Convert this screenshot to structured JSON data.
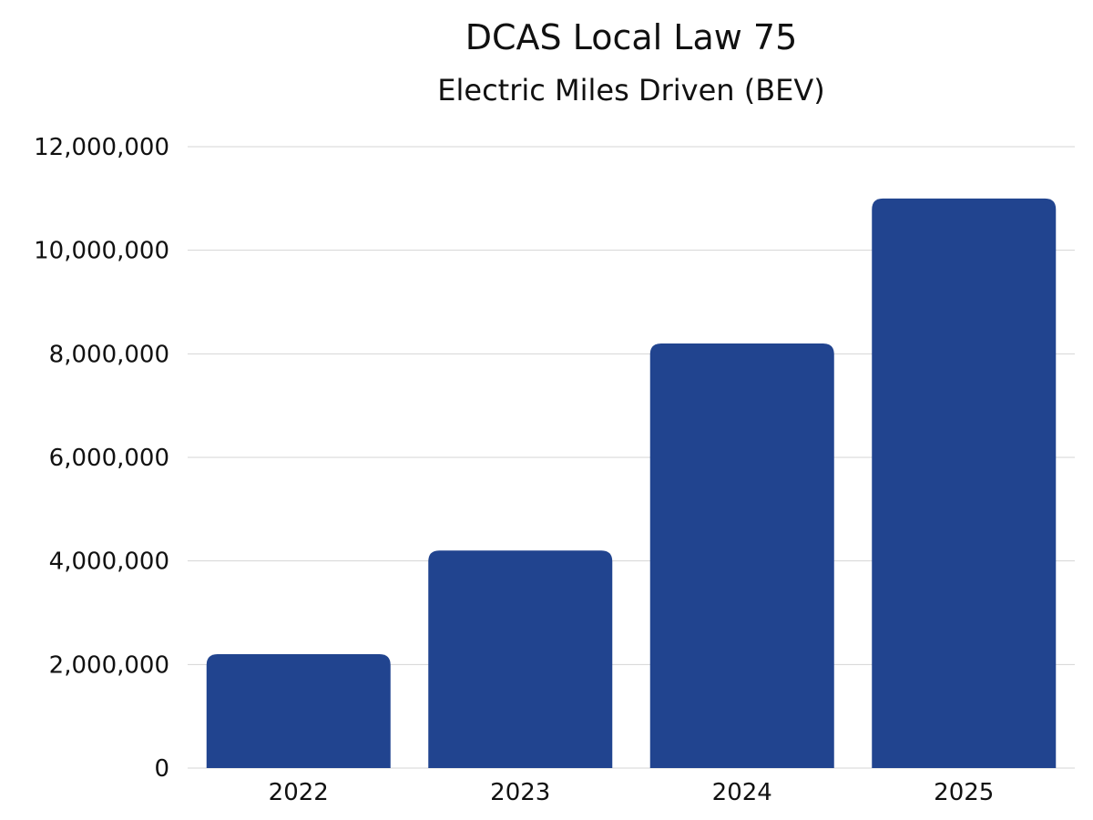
{
  "chart_data": {
    "type": "bar",
    "title": "DCAS Local Law 75",
    "subtitle": "Electric Miles Driven (BEV)",
    "categories": [
      "2022",
      "2023",
      "2024",
      "2025"
    ],
    "values": [
      2200000,
      4200000,
      8200000,
      11000000
    ],
    "xlabel": "",
    "ylabel": "",
    "ylim": [
      0,
      12000000
    ],
    "yticks": [
      0,
      2000000,
      4000000,
      6000000,
      8000000,
      10000000,
      12000000
    ],
    "ytick_labels": [
      "0",
      "2,000,000",
      "4,000,000",
      "6,000,000",
      "8,000,000",
      "10,000,000",
      "12,000,000"
    ],
    "grid": true,
    "legend": "none",
    "bar_color": "#21448f"
  }
}
